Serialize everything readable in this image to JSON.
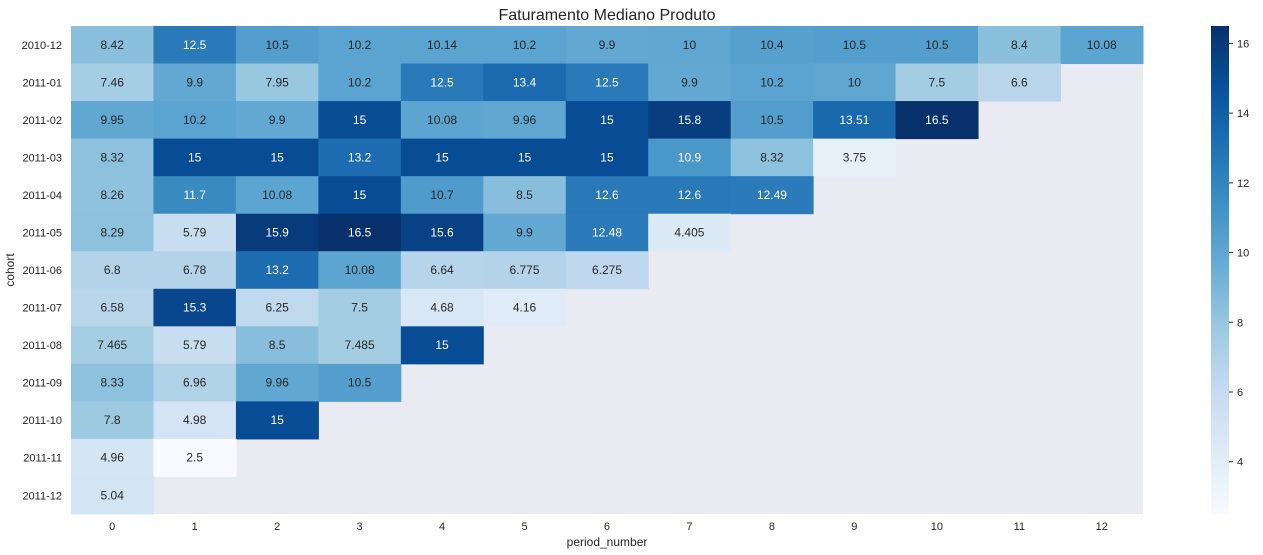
{
  "chart_data": {
    "type": "heatmap",
    "title": "Faturamento Mediano Produto",
    "xlabel": "period_number",
    "ylabel": "cohort",
    "x": [
      "0",
      "1",
      "2",
      "3",
      "4",
      "5",
      "6",
      "7",
      "8",
      "9",
      "10",
      "11",
      "12"
    ],
    "y": [
      "2010-12",
      "2011-01",
      "2011-02",
      "2011-03",
      "2011-04",
      "2011-05",
      "2011-06",
      "2011-07",
      "2011-08",
      "2011-09",
      "2011-10",
      "2011-11",
      "2011-12"
    ],
    "values": [
      [
        "8.42",
        "12.5",
        "10.5",
        "10.2",
        "10.14",
        "10.2",
        "9.9",
        "10",
        "10.4",
        "10.5",
        "10.5",
        "8.4",
        "10.08"
      ],
      [
        "7.46",
        "9.9",
        "7.95",
        "10.2",
        "12.5",
        "13.4",
        "12.5",
        "9.9",
        "10.2",
        "10",
        "7.5",
        "6.6",
        null
      ],
      [
        "9.95",
        "10.2",
        "9.9",
        "15",
        "10.08",
        "9.96",
        "15",
        "15.8",
        "10.5",
        "13.51",
        "16.5",
        null,
        null
      ],
      [
        "8.32",
        "15",
        "15",
        "13.2",
        "15",
        "15",
        "15",
        "10.9",
        "8.32",
        "3.75",
        null,
        null,
        null
      ],
      [
        "8.26",
        "11.7",
        "10.08",
        "15",
        "10.7",
        "8.5",
        "12.6",
        "12.6",
        "12.49",
        null,
        null,
        null,
        null
      ],
      [
        "8.29",
        "5.79",
        "15.9",
        "16.5",
        "15.6",
        "9.9",
        "12.48",
        "4.405",
        null,
        null,
        null,
        null,
        null
      ],
      [
        "6.8",
        "6.78",
        "13.2",
        "10.08",
        "6.64",
        "6.775",
        "6.275",
        null,
        null,
        null,
        null,
        null,
        null
      ],
      [
        "6.58",
        "15.3",
        "6.25",
        "7.5",
        "4.68",
        "4.16",
        null,
        null,
        null,
        null,
        null,
        null,
        null
      ],
      [
        "7.465",
        "5.79",
        "8.5",
        "7.485",
        "15",
        null,
        null,
        null,
        null,
        null,
        null,
        null,
        null
      ],
      [
        "8.33",
        "6.96",
        "9.96",
        "10.5",
        null,
        null,
        null,
        null,
        null,
        null,
        null,
        null,
        null
      ],
      [
        "7.8",
        "4.98",
        "15",
        null,
        null,
        null,
        null,
        null,
        null,
        null,
        null,
        null,
        null
      ],
      [
        "4.96",
        "2.5",
        null,
        null,
        null,
        null,
        null,
        null,
        null,
        null,
        null,
        null,
        null
      ],
      [
        "5.04",
        null,
        null,
        null,
        null,
        null,
        null,
        null,
        null,
        null,
        null,
        null,
        null
      ]
    ],
    "vmin": 2.5,
    "vmax": 16.5,
    "colormap": "Blues",
    "colorbar_ticks": [
      "4",
      "6",
      "8",
      "10",
      "12",
      "14",
      "16"
    ],
    "colors": {
      "missing_background": "#eaeaf2",
      "cmap_stops": [
        "#f7fbff",
        "#deebf7",
        "#c6dbef",
        "#9ecae1",
        "#6baed6",
        "#4292c6",
        "#2171b5",
        "#08519c",
        "#08306b"
      ]
    }
  }
}
